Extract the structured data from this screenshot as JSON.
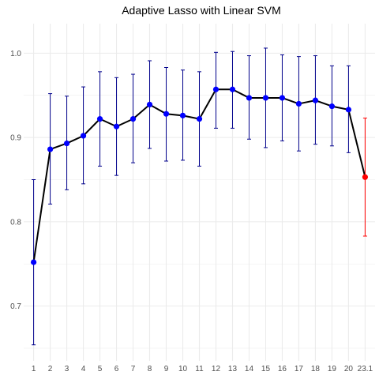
{
  "chart_data": {
    "type": "line",
    "title": "Adaptive Lasso with Linear SVM",
    "xlabel": "",
    "ylabel": "",
    "categories": [
      "1",
      "2",
      "3",
      "4",
      "5",
      "6",
      "7",
      "8",
      "9",
      "10",
      "11",
      "12",
      "13",
      "14",
      "15",
      "16",
      "17",
      "18",
      "19",
      "20",
      "23.1"
    ],
    "series": [
      {
        "values": [
          0.752,
          0.886,
          0.893,
          0.902,
          0.922,
          0.913,
          0.922,
          0.939,
          0.928,
          0.926,
          0.922,
          0.957,
          0.957,
          0.947,
          0.947,
          0.947,
          0.94,
          0.944,
          0.937,
          0.933,
          0.853
        ],
        "lower": [
          0.654,
          0.821,
          0.838,
          0.845,
          0.866,
          0.855,
          0.87,
          0.887,
          0.872,
          0.873,
          0.866,
          0.911,
          0.911,
          0.898,
          0.888,
          0.896,
          0.884,
          0.892,
          0.89,
          0.882,
          0.783
        ],
        "upper": [
          0.85,
          0.952,
          0.949,
          0.96,
          0.978,
          0.971,
          0.975,
          0.991,
          0.983,
          0.98,
          0.978,
          1.001,
          1.002,
          0.997,
          1.006,
          0.998,
          0.996,
          0.997,
          0.985,
          0.985,
          0.923
        ]
      }
    ],
    "highlight_index": 20,
    "ylim": [
      0.635,
      1.035
    ],
    "yticks": [
      0.7,
      0.8,
      0.9,
      1.0
    ],
    "ytick_labels": [
      "0.7",
      "0.8",
      "0.9",
      "1.0"
    ],
    "grid": true,
    "colors": {
      "background": "#ffffff",
      "grid": "#ebebeb",
      "line": "#000000",
      "point": "#0000ff",
      "errorbar": "#00008b",
      "highlight": "#ff0000",
      "tick_text": "#4d4d4d"
    }
  }
}
